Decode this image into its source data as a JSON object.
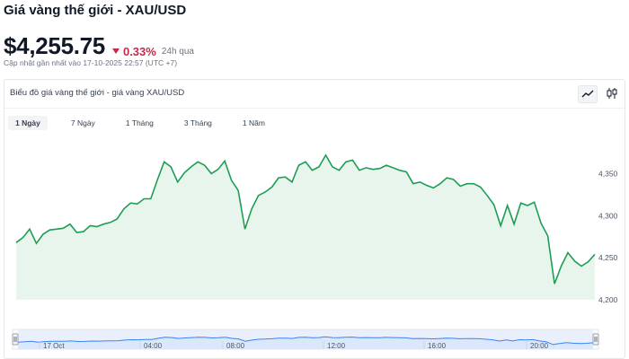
{
  "header": {
    "title": "Giá vàng thế giới - XAU/USD",
    "price": "$4,255.75",
    "change": "0.33%",
    "period": "24h qua",
    "updated": "Cập nhật gần nhất vào 17-10-2025 22:57 (UTC +7)"
  },
  "panel": {
    "title": "Biểu đồ giá vàng thế giới - giá vàng XAU/USD",
    "icons": [
      "line-chart-icon",
      "candlestick-icon"
    ]
  },
  "ranges": [
    {
      "label": "1 Ngày",
      "active": true
    },
    {
      "label": "7 Ngày",
      "active": false
    },
    {
      "label": "1 Tháng",
      "active": false
    },
    {
      "label": "3 Tháng",
      "active": false
    },
    {
      "label": "1 Năm",
      "active": false
    }
  ],
  "colors": {
    "line": "#1f9d55",
    "area": "#e8f5ec",
    "negative": "#c62a4a",
    "navigator_line": "#3b82f6",
    "navigator_fill": "#dbe8fb"
  },
  "chart_data": {
    "type": "area",
    "ylim": [
      4200,
      4375
    ],
    "y_ticks": [
      "4,350",
      "4,300",
      "4,250",
      "4,200"
    ],
    "y_tick_values": [
      4350,
      4300,
      4250,
      4200
    ],
    "values": [
      4268,
      4274,
      4284,
      4267,
      4278,
      4283,
      4284,
      4285,
      4290,
      4280,
      4281,
      4288,
      4287,
      4290,
      4292,
      4296,
      4308,
      4315,
      4314,
      4320,
      4320,
      4343,
      4364,
      4358,
      4340,
      4351,
      4358,
      4364,
      4360,
      4350,
      4355,
      4365,
      4342,
      4330,
      4284,
      4308,
      4324,
      4328,
      4334,
      4345,
      4346,
      4340,
      4360,
      4364,
      4354,
      4358,
      4372,
      4358,
      4354,
      4364,
      4366,
      4354,
      4357,
      4355,
      4356,
      4360,
      4357,
      4354,
      4352,
      4338,
      4340,
      4336,
      4333,
      4338,
      4345,
      4343,
      4335,
      4338,
      4338,
      4334,
      4324,
      4313,
      4288,
      4312,
      4290,
      4315,
      4312,
      4316,
      4291,
      4276,
      4219,
      4240,
      4256,
      4246,
      4240,
      4245,
      4254
    ],
    "navigator_labels": [
      "17 Oct",
      "04:00",
      "08:00",
      "12:00",
      "16:00",
      "20:00"
    ]
  }
}
